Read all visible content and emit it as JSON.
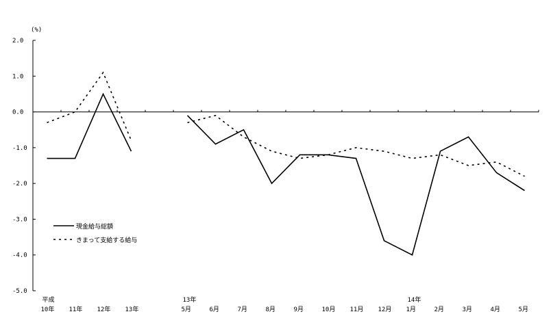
{
  "chart_data": {
    "type": "line",
    "unit_label": "(%)",
    "ylim": [
      -5.0,
      2.0
    ],
    "yticks": [
      "2.0",
      "1.0",
      "0.0",
      "-1.0",
      "-2.0",
      "-3.0",
      "-4.0",
      "-5.0"
    ],
    "ytick_values": [
      2,
      1,
      0,
      -1,
      -2,
      -3,
      -4,
      -5
    ],
    "grid": false,
    "legend_position": "bottom-left",
    "groups": [
      {
        "categories": [
          {
            "top": "平成",
            "label": "10年"
          },
          {
            "top": "",
            "label": "11年"
          },
          {
            "top": "",
            "label": "12年"
          },
          {
            "top": "",
            "label": "13年"
          }
        ]
      },
      {
        "categories": [
          {
            "top": "13年",
            "label": "5月"
          },
          {
            "top": "",
            "label": "6月"
          },
          {
            "top": "",
            "label": "7月"
          },
          {
            "top": "",
            "label": "8月"
          },
          {
            "top": "",
            "label": "9月"
          },
          {
            "top": "",
            "label": "10月"
          },
          {
            "top": "",
            "label": "11月"
          },
          {
            "top": "",
            "label": "12月"
          },
          {
            "top": "14年",
            "label": "1月"
          },
          {
            "top": "",
            "label": "2月"
          },
          {
            "top": "",
            "label": "3月"
          },
          {
            "top": "",
            "label": "4月"
          },
          {
            "top": "",
            "label": "5月"
          }
        ]
      }
    ],
    "series": [
      {
        "name": "現金給与総額",
        "style": "solid",
        "color": "#000000",
        "annual": [
          -1.3,
          -1.3,
          0.5,
          -1.1
        ],
        "monthly": [
          -0.1,
          -0.9,
          -0.5,
          -2.0,
          -1.2,
          -1.2,
          -1.3,
          -3.6,
          -4.0,
          -1.1,
          -0.7,
          -1.7,
          -2.2
        ]
      },
      {
        "name": "きまって支給する給与",
        "style": "dashed",
        "color": "#000000",
        "annual": [
          -0.3,
          0.0,
          1.1,
          -0.8
        ],
        "monthly": [
          -0.3,
          -0.1,
          -0.7,
          -1.1,
          -1.3,
          -1.2,
          -1.0,
          -1.1,
          -1.3,
          -1.2,
          -1.5,
          -1.4,
          -1.8
        ]
      }
    ]
  }
}
